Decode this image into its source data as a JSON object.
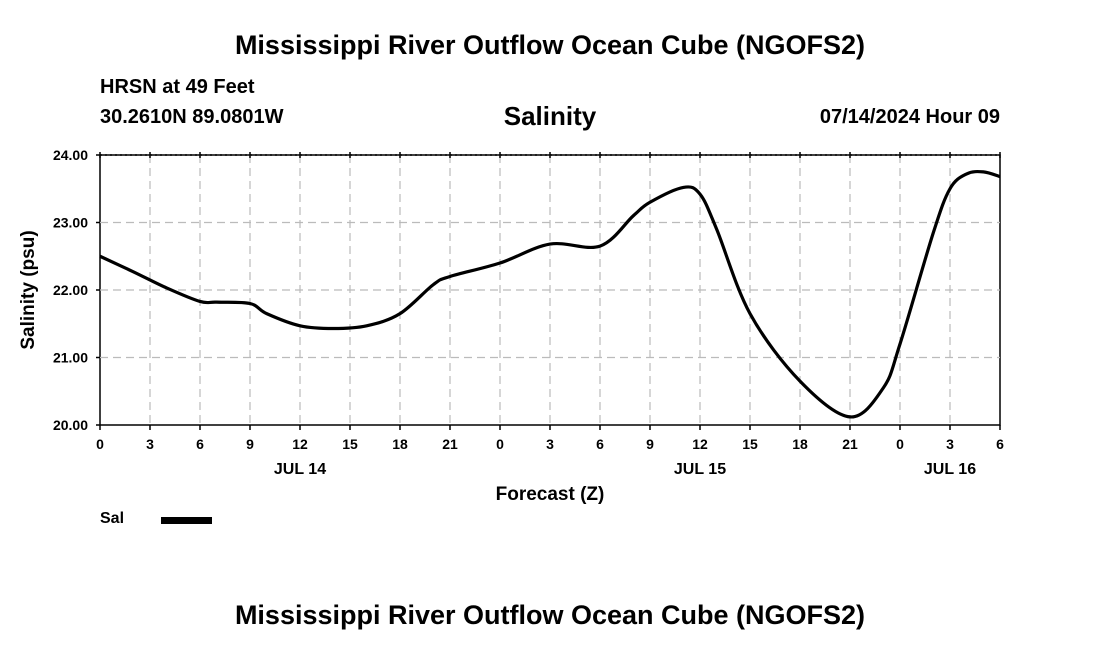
{
  "titles": {
    "main": "Mississippi River Outflow Ocean Cube (NGOFS2)",
    "station": "HRSN at 49 Feet",
    "coords": "30.2610N  89.0801W",
    "variable": "Salinity",
    "datetime": "07/14/2024 Hour 09",
    "bottom": "Mississippi River Outflow Ocean Cube (NGOFS2)"
  },
  "legend": {
    "label": "Sal"
  },
  "chart_data": {
    "type": "line",
    "title": "Salinity",
    "xlabel": "Forecast (Z)",
    "ylabel": "Salinity (psu)",
    "xlim": [
      0,
      54
    ],
    "ylim": [
      20.0,
      24.0
    ],
    "grid": true,
    "y_ticks": [
      "20.00",
      "21.00",
      "22.00",
      "23.00",
      "24.00"
    ],
    "x_ticks": [
      "0",
      "3",
      "6",
      "9",
      "12",
      "15",
      "18",
      "21",
      "0",
      "3",
      "6",
      "9",
      "12",
      "15",
      "18",
      "21",
      "0",
      "3",
      "6"
    ],
    "day_labels": [
      {
        "label": "JUL 14",
        "hour": 12
      },
      {
        "label": "JUL 15",
        "hour": 36
      },
      {
        "label": "JUL 16",
        "hour": 51
      }
    ],
    "series": [
      {
        "name": "Sal",
        "x": [
          0,
          2,
          4,
          6,
          7,
          9,
          10,
          12,
          14,
          16,
          18,
          20,
          21,
          24,
          27,
          30,
          32,
          33,
          35,
          36,
          37,
          39,
          42,
          45,
          47,
          48,
          50,
          51,
          52,
          53,
          54
        ],
        "y": [
          22.5,
          22.27,
          22.03,
          21.83,
          21.82,
          21.8,
          21.65,
          21.47,
          21.43,
          21.47,
          21.65,
          22.08,
          22.2,
          22.4,
          22.68,
          22.65,
          23.1,
          23.3,
          23.52,
          23.42,
          22.9,
          21.65,
          20.65,
          20.12,
          20.55,
          21.2,
          22.85,
          23.5,
          23.72,
          23.75,
          23.68
        ]
      }
    ]
  }
}
